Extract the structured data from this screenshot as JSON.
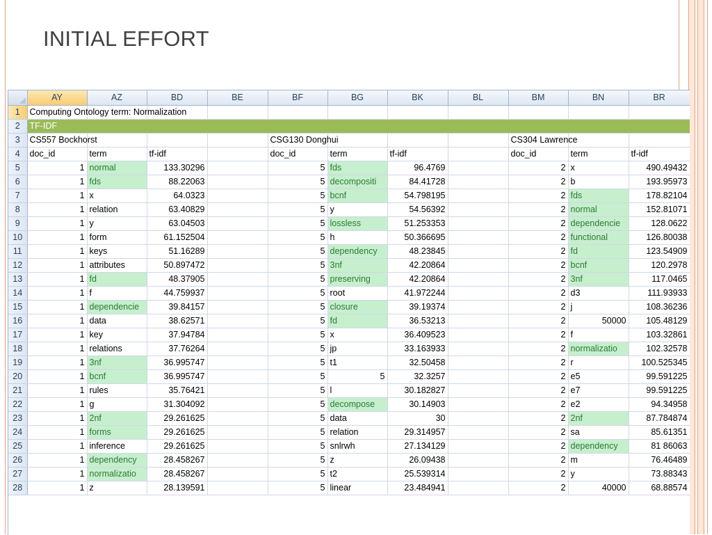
{
  "slide": {
    "title": "INITIAL EFFORT"
  },
  "sheet": {
    "columns": [
      "AY",
      "AZ",
      "BD",
      "BE",
      "BF",
      "BG",
      "BK",
      "BL",
      "BM",
      "BN",
      "BR"
    ],
    "row1_text": "Computing Ontology term: Normalization",
    "row2_text": "TF-IDF",
    "groups": [
      {
        "name": "CS557 Bockhorst",
        "doc_id_header": "doc_id",
        "term_header": "term",
        "tfidf_header": "tf-idf"
      },
      {
        "name": "CSG130 Donghui",
        "doc_id_header": "doc_id",
        "term_header": "term",
        "tfidf_header": "tf-idf"
      },
      {
        "name": "CS304 Lawrence",
        "doc_id_header": "doc_id",
        "term_header": "term",
        "tfidf_header": "tf-idf"
      }
    ],
    "rows": [
      {
        "n": "5",
        "a": [
          "1",
          "normal",
          "133.30296",
          true
        ],
        "b": [
          "5",
          "fds",
          "96.4769",
          true
        ],
        "c": [
          "2",
          "x",
          "490.49432",
          false
        ]
      },
      {
        "n": "6",
        "a": [
          "1",
          "fds",
          "88.22063",
          true
        ],
        "b": [
          "5",
          "decompositi",
          "84.41728",
          true
        ],
        "c": [
          "2",
          "b",
          "193.95973",
          false
        ]
      },
      {
        "n": "7",
        "a": [
          "1",
          "x",
          "64.0323",
          false
        ],
        "b": [
          "5",
          "bcnf",
          "54.798195",
          true
        ],
        "c": [
          "2",
          "fds",
          "178.82104",
          true
        ]
      },
      {
        "n": "8",
        "a": [
          "1",
          "relation",
          "63.40829",
          false
        ],
        "b": [
          "5",
          "y",
          "54.56392",
          false
        ],
        "c": [
          "2",
          "normal",
          "152.81071",
          true
        ]
      },
      {
        "n": "9",
        "a": [
          "1",
          "y",
          "63.04503",
          false
        ],
        "b": [
          "5",
          "lossless",
          "51.253353",
          true
        ],
        "c": [
          "2",
          "dependencie",
          "128.0622",
          true
        ]
      },
      {
        "n": "10",
        "a": [
          "1",
          "form",
          "61.152504",
          false
        ],
        "b": [
          "5",
          "h",
          "50.366695",
          false
        ],
        "c": [
          "2",
          "functional",
          "126.80038",
          true
        ]
      },
      {
        "n": "11",
        "a": [
          "1",
          "keys",
          "51.16289",
          false
        ],
        "b": [
          "5",
          "dependency",
          "48.23845",
          true
        ],
        "c": [
          "2",
          "fd",
          "123.54909",
          true
        ]
      },
      {
        "n": "12",
        "a": [
          "1",
          "attributes",
          "50.897472",
          false
        ],
        "b": [
          "5",
          "3nf",
          "42.20864",
          true
        ],
        "c": [
          "2",
          "bcnf",
          "120.2978",
          true
        ]
      },
      {
        "n": "13",
        "a": [
          "1",
          "fd",
          "48.37905",
          true
        ],
        "b": [
          "5",
          "preserving",
          "42.20864",
          true
        ],
        "c": [
          "2",
          "3nf",
          "117.0465",
          true
        ]
      },
      {
        "n": "14",
        "a": [
          "1",
          "f",
          "44.759937",
          false
        ],
        "b": [
          "5",
          "root",
          "41.972244",
          false
        ],
        "c": [
          "2",
          "d3",
          "111.93933",
          false
        ]
      },
      {
        "n": "15",
        "a": [
          "1",
          "dependencie",
          "39.84157",
          true
        ],
        "b": [
          "5",
          "closure",
          "39.19374",
          true
        ],
        "c": [
          "2",
          "j",
          "108.36236",
          false
        ]
      },
      {
        "n": "16",
        "a": [
          "1",
          "data",
          "38.62571",
          false
        ],
        "b": [
          "5",
          "fd",
          "36.53213",
          true
        ],
        "c": [
          "2",
          "50000",
          "105.48129",
          false,
          "num"
        ]
      },
      {
        "n": "17",
        "a": [
          "1",
          "key",
          "37.94784",
          false
        ],
        "b": [
          "5",
          "x",
          "36.409523",
          false
        ],
        "c": [
          "2",
          "f",
          "103.32861",
          false
        ]
      },
      {
        "n": "18",
        "a": [
          "1",
          "relations",
          "37.76264",
          false
        ],
        "b": [
          "5",
          "jp",
          "33.163933",
          false
        ],
        "c": [
          "2",
          "normalizatio",
          "102.32578",
          true
        ]
      },
      {
        "n": "19",
        "a": [
          "1",
          "3nf",
          "36.995747",
          true
        ],
        "b": [
          "5",
          "t1",
          "32.50458",
          false
        ],
        "c": [
          "2",
          "r",
          "100.525345",
          false
        ]
      },
      {
        "n": "20",
        "a": [
          "1",
          "bcnf",
          "36.995747",
          true
        ],
        "b": [
          "5",
          "5",
          "32.3257",
          false,
          "num"
        ],
        "c": [
          "2",
          "e5",
          "99.591225",
          false
        ]
      },
      {
        "n": "21",
        "a": [
          "1",
          "rules",
          "35.76421",
          false
        ],
        "b": [
          "5",
          "l",
          "30.182827",
          false
        ],
        "c": [
          "2",
          "e7",
          "99.591225",
          false
        ]
      },
      {
        "n": "22",
        "a": [
          "1",
          "g",
          "31.304092",
          false
        ],
        "b": [
          "5",
          "decompose",
          "30.14903",
          true
        ],
        "c": [
          "2",
          "e2",
          "94.34958",
          false
        ]
      },
      {
        "n": "23",
        "a": [
          "1",
          "2nf",
          "29.261625",
          true
        ],
        "b": [
          "5",
          "data",
          "30",
          false
        ],
        "c": [
          "2",
          "2nf",
          "87.784874",
          true
        ]
      },
      {
        "n": "24",
        "a": [
          "1",
          "forms",
          "29.261625",
          true
        ],
        "b": [
          "5",
          "relation",
          "29.314957",
          false
        ],
        "c": [
          "2",
          "sa",
          "85.61351",
          false
        ]
      },
      {
        "n": "25",
        "a": [
          "1",
          "inference",
          "29.261625",
          false
        ],
        "b": [
          "5",
          "snlrwh",
          "27.134129",
          false
        ],
        "c": [
          "2",
          "dependency",
          "81 86063",
          true
        ]
      },
      {
        "n": "26",
        "a": [
          "1",
          "dependency",
          "28.458267",
          true
        ],
        "b": [
          "5",
          "z",
          "26.09438",
          false
        ],
        "c": [
          "2",
          "m",
          "76.46489",
          false
        ]
      },
      {
        "n": "27",
        "a": [
          "1",
          "normalizatio",
          "28.458267",
          true
        ],
        "b": [
          "5",
          "t2",
          "25.539314",
          false
        ],
        "c": [
          "2",
          "y",
          "73.88343",
          false
        ]
      },
      {
        "n": "28",
        "a": [
          "1",
          "z",
          "28.139591",
          false
        ],
        "b": [
          "5",
          "linear",
          "23.484941",
          false
        ],
        "c": [
          "2",
          "40000",
          "68.88574",
          false,
          "num"
        ]
      }
    ]
  }
}
